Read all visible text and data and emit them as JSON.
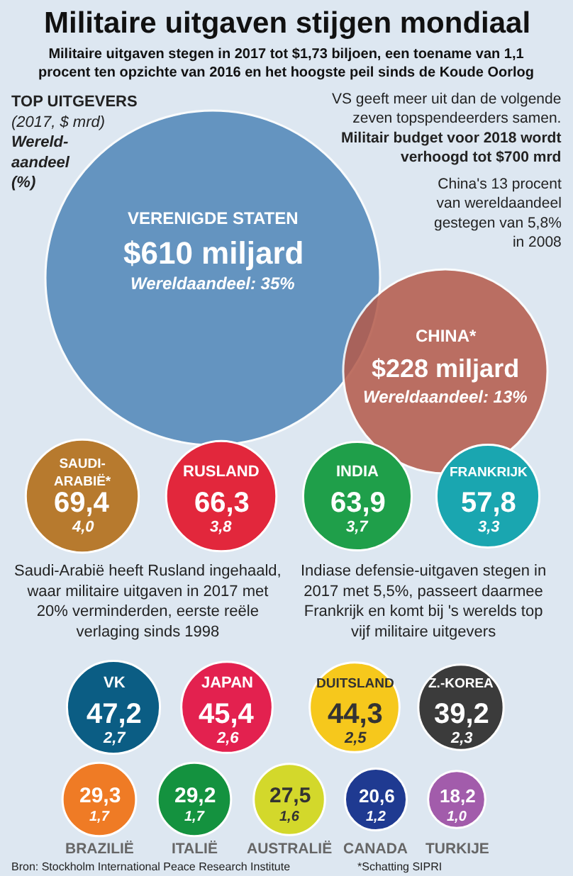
{
  "chart_data": {
    "type": "other",
    "title": "Militaire uitgaven stijgen mondiaal",
    "subtitle": "Militaire uitgaven stegen in 2017 tot $1,73 biljoen, een toename van 1,1 procent ten opzichte van 2016 en het hoogste peil sinds de Koude Oorlog",
    "legend_title": "TOP UITGEVERS",
    "categories": [
      "VERENIGDE STATEN",
      "CHINA*",
      "SAUDI-ARABIË*",
      "RUSLAND",
      "INDIA",
      "FRANKRIJK",
      "VK",
      "JAPAN",
      "DUITSLAND",
      "Z.-KOREA",
      "BRAZILIË",
      "ITALIË",
      "AUSTRALIË",
      "CANADA",
      "TURKIJE"
    ],
    "series": [
      {
        "name": "(2017, $ mrd)",
        "colors": [
          "#4f86b8",
          "#b45a4a",
          "#b77a2e",
          "#e2273c",
          "#1f9f4a",
          "#1aa6b0",
          "#0b5d84",
          "#e3214f",
          "#f6c81c",
          "#3b3b3b",
          "#ef7b25",
          "#14923f",
          "#d3d82b",
          "#1f3a91",
          "#a25cab"
        ],
        "values": [
          610,
          228,
          69.4,
          66.3,
          63.9,
          57.8,
          47.2,
          45.4,
          44.3,
          39.2,
          29.3,
          29.2,
          27.5,
          20.6,
          18.2
        ],
        "value_labels": [
          "$610 miljard",
          "$228 miljard",
          "69,4",
          "66,3",
          "63,9",
          "57,8",
          "47,2",
          "45,4",
          "44,3",
          "39,2",
          "29,3",
          "29,2",
          "27,5",
          "20,6",
          "18,2"
        ]
      },
      {
        "name": "Wereld-aandeel (%)",
        "values": [
          35,
          13,
          4.0,
          3.8,
          3.7,
          3.3,
          2.7,
          2.6,
          2.5,
          2.3,
          1.7,
          1.7,
          1.6,
          1.2,
          1.0
        ],
        "value_labels": [
          "Wereldaandeel: 35%",
          "Wereldaandeel: 13%",
          "4,0",
          "3,8",
          "3,7",
          "3,3",
          "2,7",
          "2,6",
          "2,5",
          "2,3",
          "1,7",
          "1,7",
          "1,6",
          "1,2",
          "1,0"
        ]
      }
    ],
    "annotations": [
      "VS geeft meer uit dan de volgende zeven topspendeerders samen. **Militair budget voor 2018 wordt verhoogd tot $700 mrd**",
      "China's 13 procent van wereldaandeel gestegen van 5,8% in 2008",
      "Saudi-Arabië heeft Rusland ingehaald, waar militaire uitgaven in 2017 met 20% verminderden, eerste reële verlaging sinds 1998",
      "Indiase defensie-uitgaven stegen in 2017 met 5,5%, passeert daarmee Frankrijk en komt bij 's werelds top vijf militaire uitgevers",
      "Bron: Stockholm International Peace Research Institute",
      "*Schatting SIPRI"
    ]
  }
}
